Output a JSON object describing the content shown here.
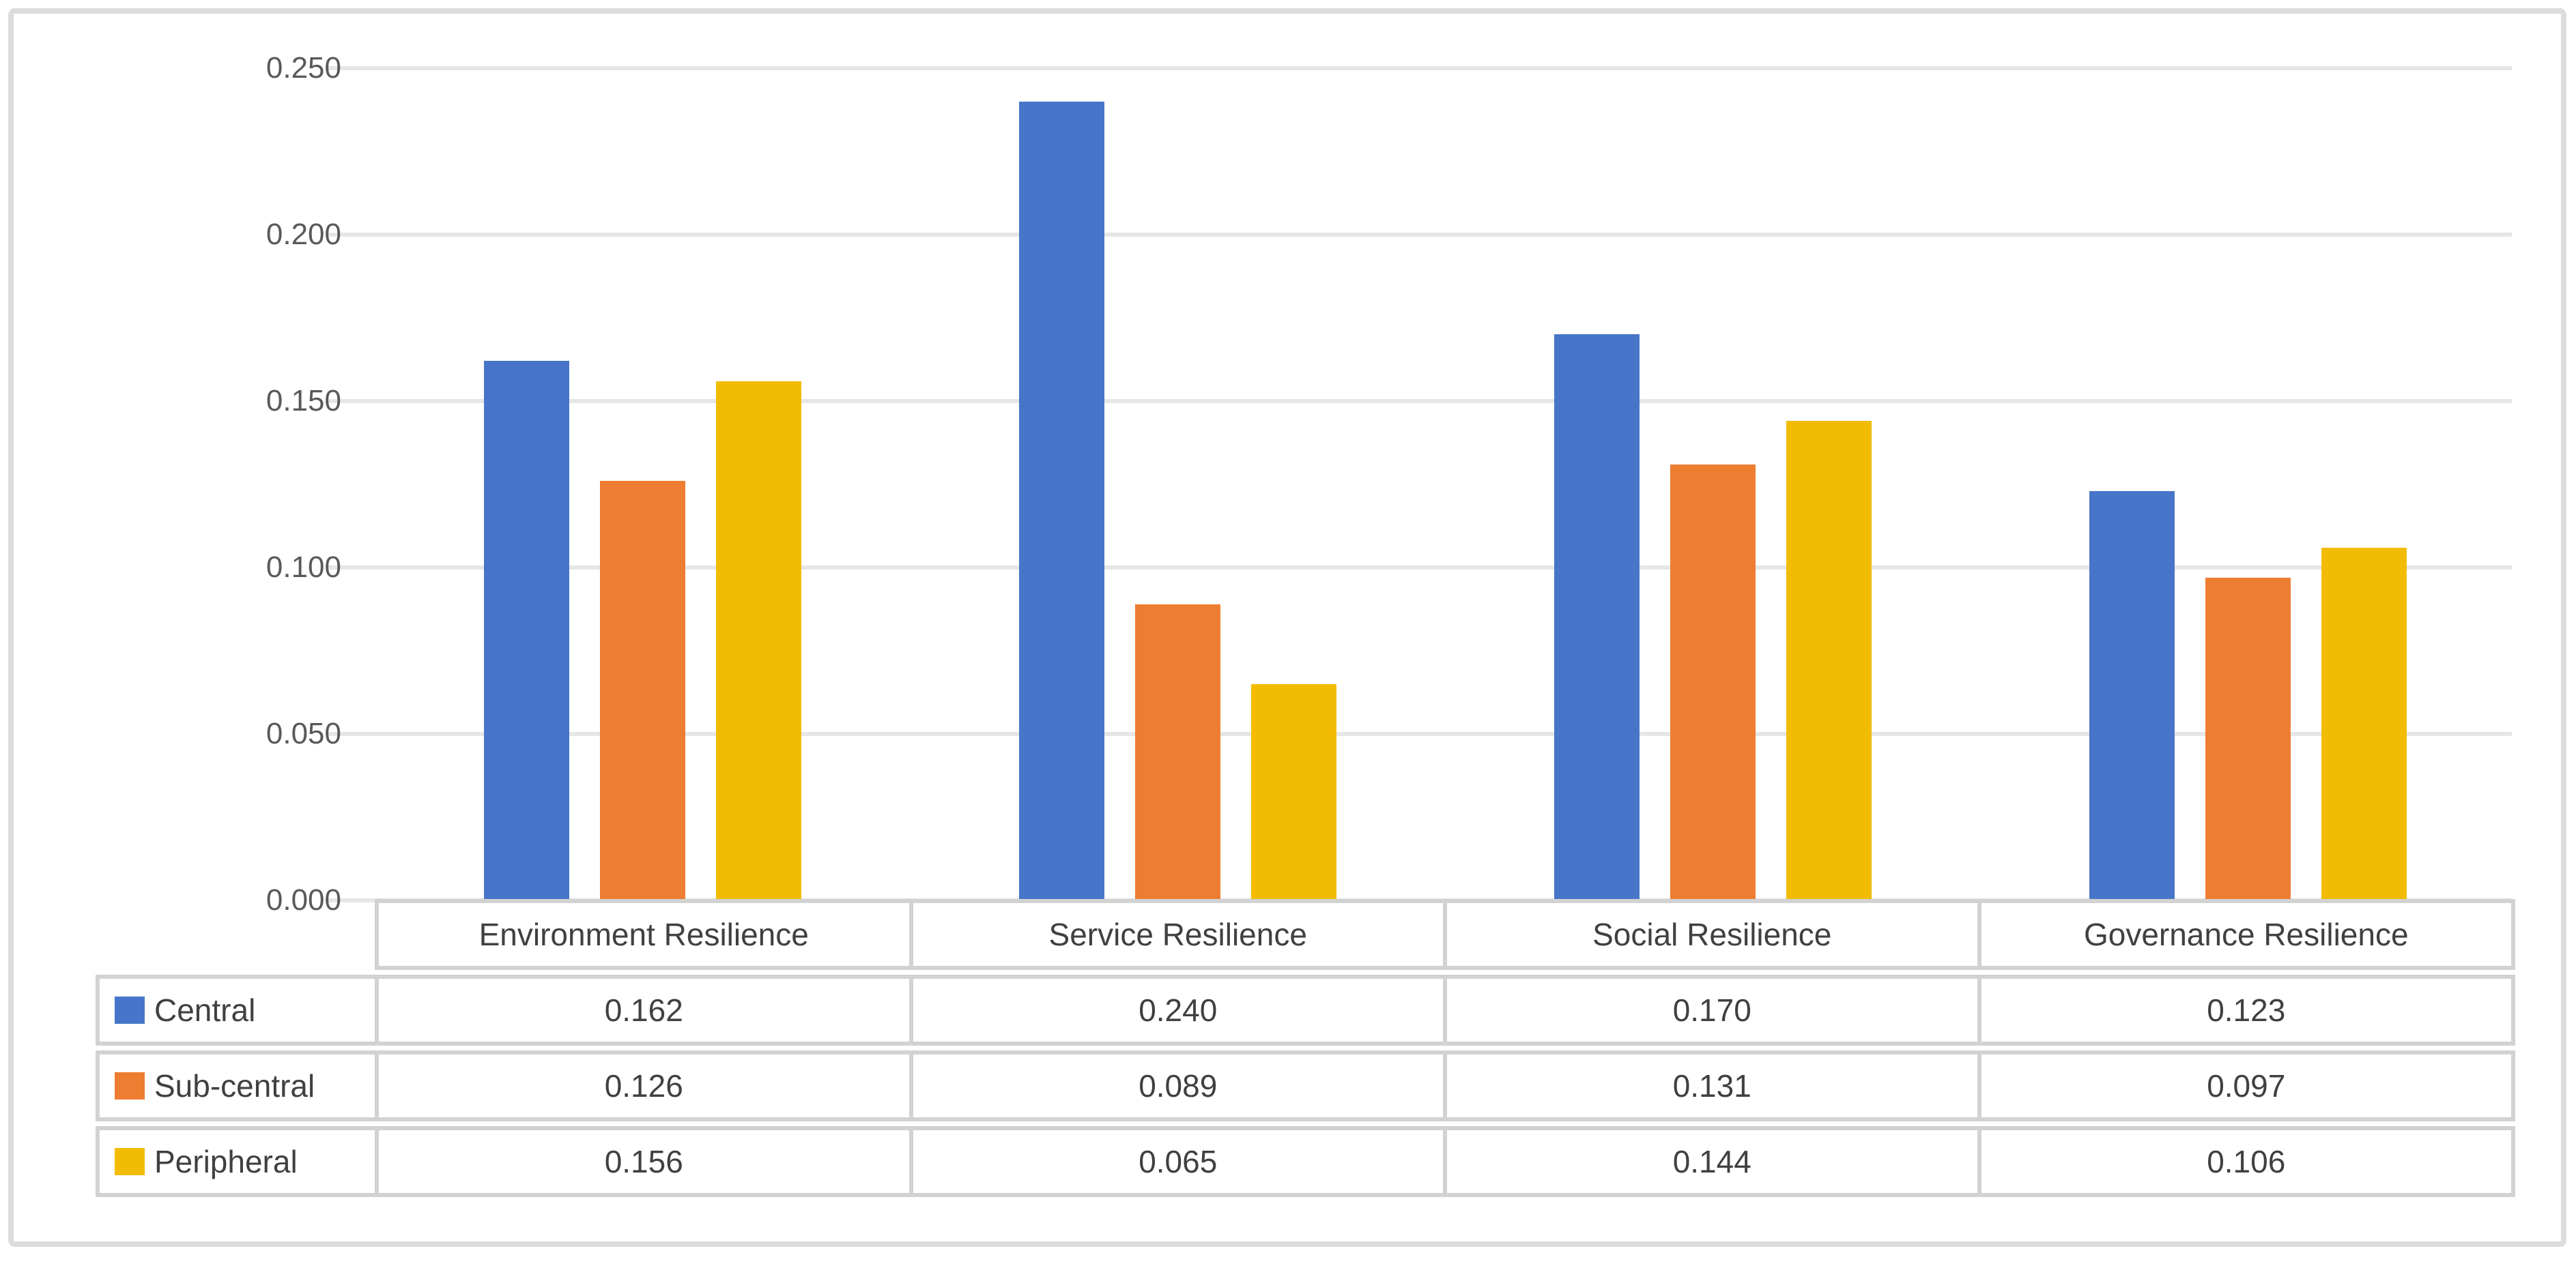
{
  "chart_data": {
    "type": "bar",
    "title": "",
    "categories": [
      "Environment Resilience",
      "Service Resilience",
      "Social Resilience",
      "Governance Resilience"
    ],
    "series": [
      {
        "name": "Central",
        "color": "#4775C9",
        "values": [
          0.162,
          0.24,
          0.17,
          0.123
        ],
        "value_labels": [
          "0.162",
          "0.240",
          "0.170",
          "0.123"
        ]
      },
      {
        "name": "Sub-central",
        "color": "#ED7D31",
        "values": [
          0.126,
          0.089,
          0.131,
          0.097
        ],
        "value_labels": [
          "0.126",
          "0.089",
          "0.131",
          "0.097"
        ]
      },
      {
        "name": "Peripheral",
        "color": "#F2BC04",
        "values": [
          0.156,
          0.065,
          0.144,
          0.106
        ],
        "value_labels": [
          "0.156",
          "0.065",
          "0.144",
          "0.106"
        ]
      }
    ],
    "xlabel": "",
    "ylabel": "",
    "ylim": [
      0,
      0.25
    ],
    "y_tick_step": 0.05,
    "y_tick_labels": [
      "0.250",
      "0.200",
      "0.150",
      "0.100",
      "0.050",
      "0.000"
    ],
    "grid": true,
    "gridline_color": "#e6e6e6",
    "legend_position": "data-table-left",
    "data_table_shown": true,
    "axis_text_color": "#595959",
    "table_text_color": "#404040",
    "table_border_color": "#d2d2d2",
    "frame_border_color": "#dcdcdc",
    "background_color": "#ffffff"
  }
}
